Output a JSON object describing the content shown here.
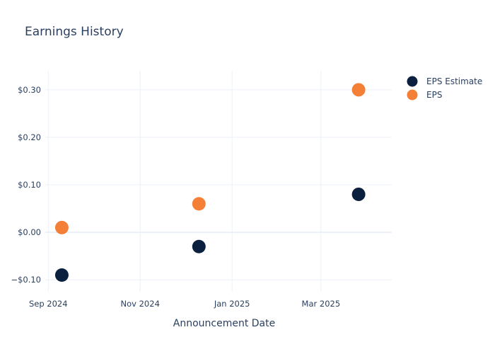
{
  "chart_data": {
    "type": "scatter",
    "title": "Earnings History",
    "xlabel": "Announcement Date",
    "ylabel": "",
    "x_ticks": [
      {
        "date": "2024-09-01",
        "label": "Sep 2024"
      },
      {
        "date": "2024-11-01",
        "label": "Nov 2024"
      },
      {
        "date": "2025-01-01",
        "label": "Jan 2025"
      },
      {
        "date": "2025-03-01",
        "label": "Mar 2025"
      }
    ],
    "y_ticks": [
      {
        "value": -0.1,
        "label": "−$0.10"
      },
      {
        "value": 0.0,
        "label": "$0.00"
      },
      {
        "value": 0.1,
        "label": "$0.10"
      },
      {
        "value": 0.2,
        "label": "$0.20"
      },
      {
        "value": 0.3,
        "label": "$0.30"
      }
    ],
    "xlim": [
      "2024-08-30",
      "2025-04-17"
    ],
    "ylim": [
      -0.125,
      0.34
    ],
    "grid": true,
    "legend_position": "top-right",
    "series": [
      {
        "name": "EPS Estimate",
        "color": "#0b1f3f",
        "points": [
          {
            "x": "2024-09-10",
            "y": -0.09
          },
          {
            "x": "2024-12-10",
            "y": -0.03
          },
          {
            "x": "2025-03-26",
            "y": 0.08
          }
        ]
      },
      {
        "name": "EPS",
        "color": "#f47f36",
        "points": [
          {
            "x": "2024-09-10",
            "y": 0.01
          },
          {
            "x": "2024-12-10",
            "y": 0.06
          },
          {
            "x": "2025-03-26",
            "y": 0.3
          }
        ]
      }
    ]
  }
}
